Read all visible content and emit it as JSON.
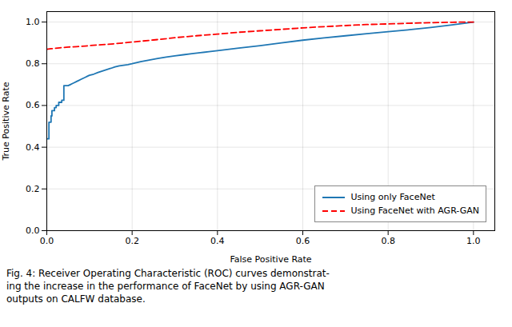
{
  "chart_data": {
    "type": "line",
    "xlabel": "False Positive Rate",
    "ylabel": "True Positive Rate",
    "caption": [
      "Fig. 4: Receiver Operating Characteristic (ROC) curves demonstrat-",
      "ing the increase in the performance of FaceNet by using AGR-GAN",
      "outputs on CALFW database."
    ],
    "xlim": [
      0.0,
      1.05
    ],
    "ylim": [
      0.0,
      1.05
    ],
    "xticks": [
      {
        "value": 0.0,
        "label": "0.0"
      },
      0.2,
      0.4,
      0.6,
      0.8,
      {
        "value": 1.0,
        "label": "1.0"
      }
    ],
    "yticks": [
      {
        "value": 0.0,
        "label": "0.0"
      },
      0.2,
      0.4,
      0.6,
      0.8,
      {
        "value": 1.0,
        "label": "1.0"
      }
    ],
    "grid": true,
    "legend": "lower right",
    "series": [
      {
        "name": "Using only FaceNet",
        "color": "#1f77b4",
        "line_style": "solid",
        "x": [
          0.0,
          0.005,
          0.005,
          0.01,
          0.01,
          0.012,
          0.012,
          0.018,
          0.018,
          0.022,
          0.022,
          0.028,
          0.028,
          0.035,
          0.035,
          0.04,
          0.04,
          0.05,
          0.055,
          0.06,
          0.065,
          0.07,
          0.075,
          0.08,
          0.085,
          0.09,
          0.095,
          0.1,
          0.11,
          0.12,
          0.13,
          0.14,
          0.15,
          0.16,
          0.17,
          0.18,
          0.19,
          0.2,
          0.22,
          0.24,
          0.26,
          0.28,
          0.3,
          0.32,
          0.34,
          0.36,
          0.38,
          0.4,
          0.45,
          0.5,
          0.55,
          0.6,
          0.65,
          0.7,
          0.75,
          0.8,
          0.85,
          0.9,
          0.95,
          1.0
        ],
        "values": [
          0.44,
          0.44,
          0.52,
          0.52,
          0.55,
          0.55,
          0.575,
          0.575,
          0.59,
          0.59,
          0.6,
          0.6,
          0.615,
          0.615,
          0.625,
          0.625,
          0.695,
          0.695,
          0.7,
          0.705,
          0.71,
          0.715,
          0.72,
          0.725,
          0.73,
          0.735,
          0.74,
          0.745,
          0.75,
          0.758,
          0.765,
          0.772,
          0.778,
          0.785,
          0.79,
          0.793,
          0.796,
          0.8,
          0.81,
          0.818,
          0.825,
          0.832,
          0.838,
          0.843,
          0.848,
          0.853,
          0.858,
          0.863,
          0.875,
          0.887,
          0.9,
          0.913,
          0.924,
          0.934,
          0.944,
          0.954,
          0.963,
          0.974,
          0.986,
          1.0
        ]
      },
      {
        "name": "Using FaceNet with AGR-GAN",
        "color": "#ff0000",
        "line_style": "dashed",
        "x": [
          0.0,
          0.01,
          0.02,
          0.03,
          0.04,
          0.05,
          0.06,
          0.07,
          0.08,
          0.09,
          0.1,
          0.12,
          0.14,
          0.16,
          0.18,
          0.2,
          0.22,
          0.25,
          0.28,
          0.3,
          0.35,
          0.4,
          0.45,
          0.5,
          0.55,
          0.6,
          0.65,
          0.7,
          0.75,
          0.8,
          0.85,
          0.9,
          0.95,
          1.0
        ],
        "values": [
          0.869,
          0.872,
          0.874,
          0.876,
          0.878,
          0.88,
          0.881,
          0.882,
          0.883,
          0.885,
          0.887,
          0.89,
          0.893,
          0.896,
          0.9,
          0.904,
          0.908,
          0.914,
          0.92,
          0.925,
          0.934,
          0.942,
          0.951,
          0.958,
          0.965,
          0.972,
          0.978,
          0.983,
          0.988,
          0.991,
          0.994,
          0.997,
          0.999,
          1.0
        ]
      }
    ]
  }
}
